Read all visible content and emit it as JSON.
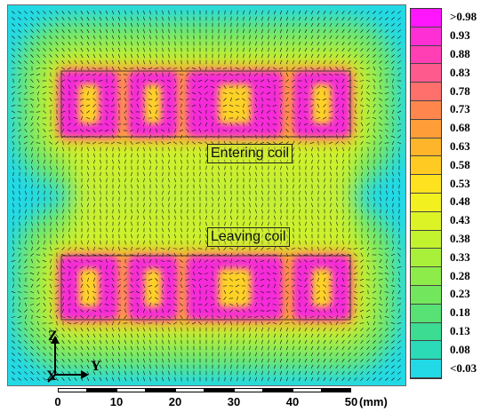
{
  "field_map": {
    "entering_coil_label": "Entering coil",
    "leaving_coil_label": "Leaving coil"
  },
  "axes": {
    "z_label": "Z",
    "y_label": "Y",
    "x_label": "X"
  },
  "scale_bar": {
    "ticks": [
      "0",
      "10",
      "20",
      "30",
      "40",
      "50"
    ],
    "unit": "(mm)"
  },
  "colorbar": {
    "labels": [
      ">0.98",
      "0.93",
      "0.88",
      "0.83",
      "0.78",
      "0.73",
      "0.68",
      "0.63",
      "0.58",
      "0.53",
      "0.48",
      "0.43",
      "0.38",
      "0.33",
      "0.28",
      "0.23",
      "0.18",
      "0.13",
      "0.08",
      "<0.03"
    ],
    "colors": [
      "#ff16ff",
      "#ff2fd6",
      "#ff3fb3",
      "#ff5a8e",
      "#ff6f6c",
      "#ff874d",
      "#ff9e38",
      "#ffb52a",
      "#ffcb22",
      "#ffe21f",
      "#f3f020",
      "#dcf326",
      "#c3f32f",
      "#a8f03a",
      "#8eec4a",
      "#72e65d",
      "#58e175",
      "#3ddc93",
      "#2bdab7",
      "#22d9e6"
    ]
  }
}
